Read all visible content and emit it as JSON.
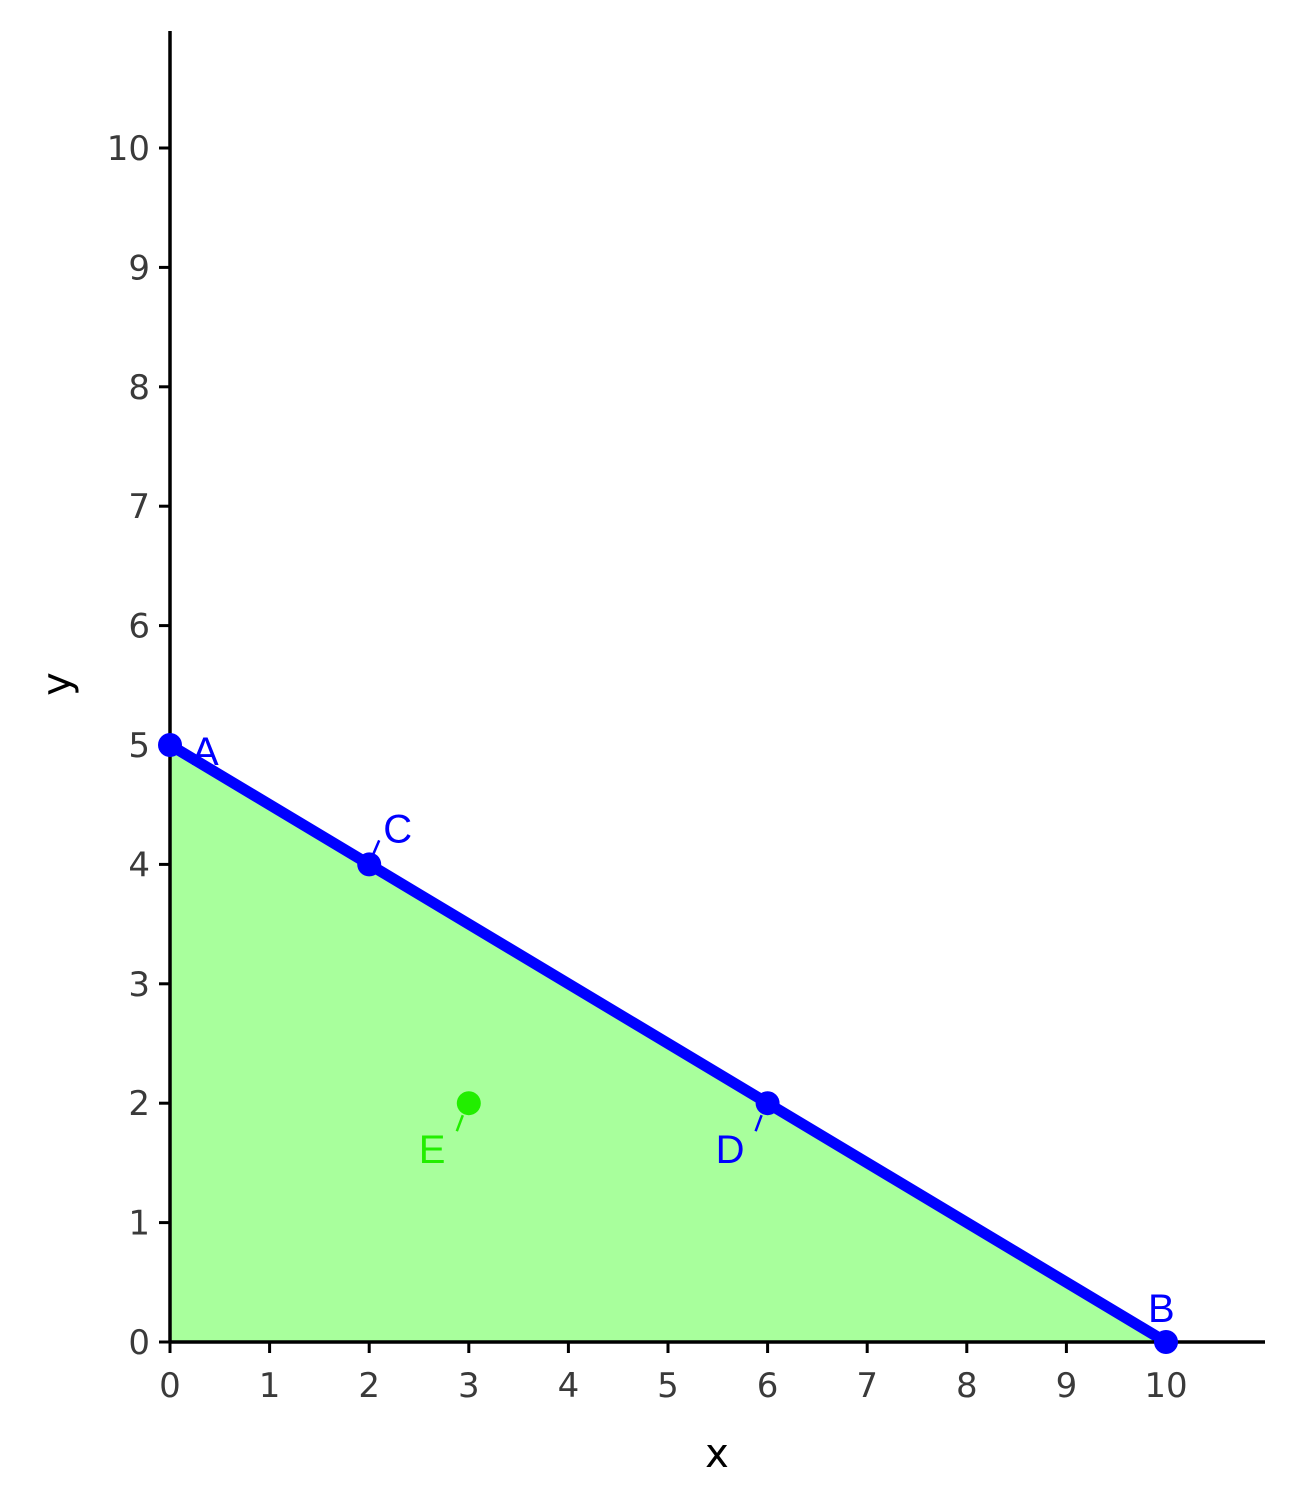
{
  "chart_data": {
    "type": "line",
    "title": "",
    "xlabel": "x",
    "ylabel": "y",
    "xlim": [
      0,
      11
    ],
    "ylim": [
      0,
      11
    ],
    "x_ticks": [
      "0",
      "1",
      "2",
      "3",
      "4",
      "5",
      "6",
      "7",
      "8",
      "9",
      "10"
    ],
    "y_ticks": [
      "0",
      "1",
      "2",
      "3",
      "4",
      "5",
      "6",
      "7",
      "8",
      "9",
      "10"
    ],
    "grid": false,
    "legend": "none",
    "series": [
      {
        "points": [
          {
            "label": "A",
            "x": 0,
            "y": 5
          },
          {
            "label": "C",
            "x": 2,
            "y": 4
          },
          {
            "label": "D",
            "x": 6,
            "y": 2
          },
          {
            "label": "B",
            "x": 10,
            "y": 0
          }
        ],
        "color": "#0000ff"
      }
    ],
    "extra_points": [
      {
        "label": "E",
        "x": 3,
        "y": 2,
        "color": "#22ee00"
      }
    ],
    "shaded_region": {
      "polygon": [
        [
          0,
          0
        ],
        [
          0,
          5
        ],
        [
          10,
          0
        ]
      ],
      "color": "#a8ff9c"
    }
  }
}
